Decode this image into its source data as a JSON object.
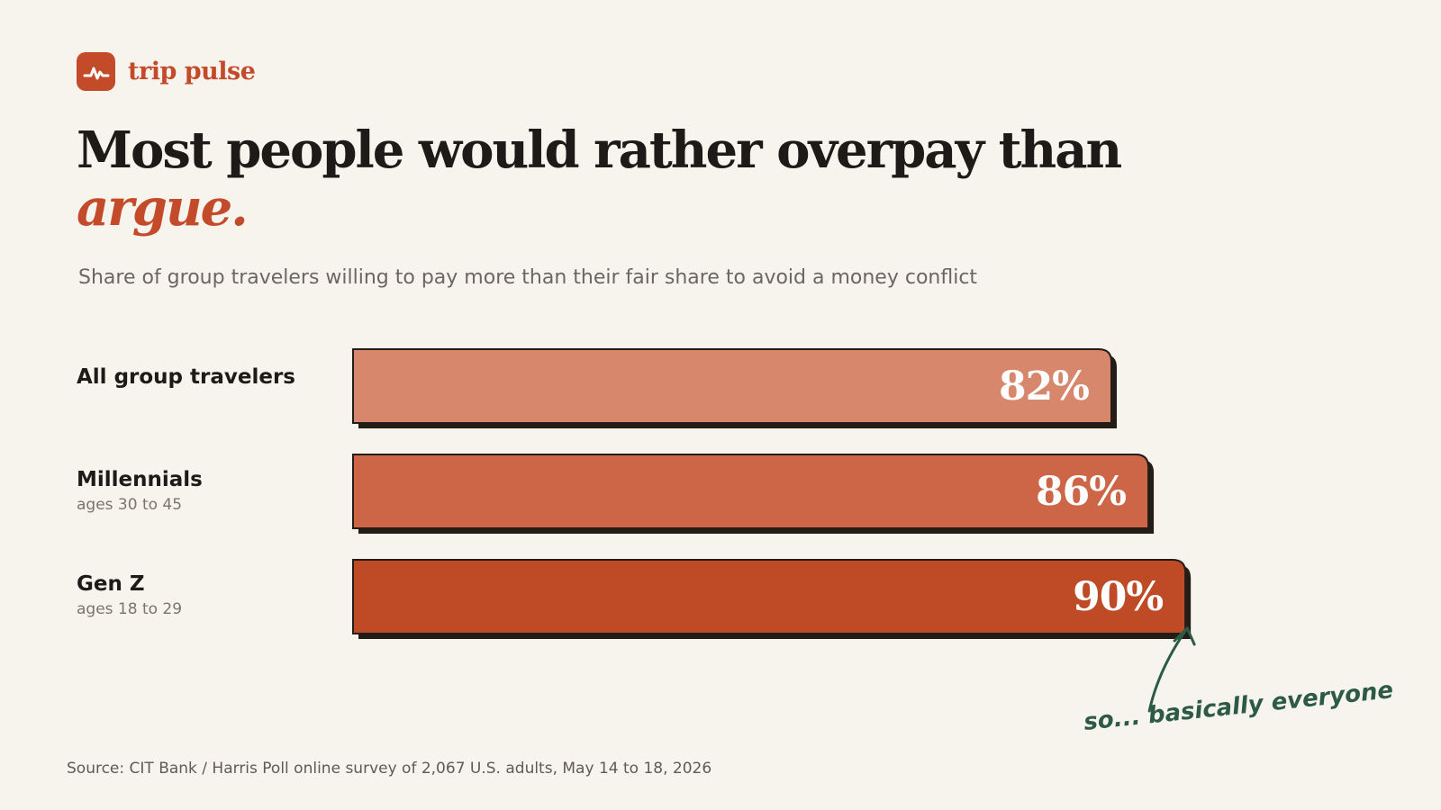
{
  "brand": {
    "name": "trip pulse",
    "icon": "pulse-icon",
    "color": "#c34b2a"
  },
  "headline": {
    "main": "Most people would rather overpay than",
    "accent": "argue."
  },
  "subtitle": "Share of group travelers willing to pay more than their fair share to avoid a money conflict",
  "chart_data": {
    "type": "bar",
    "orientation": "horizontal",
    "title": "Most people would rather overpay than argue.",
    "subtitle": "Share of group travelers willing to pay more than their fair share to avoid a money conflict",
    "categories": [
      "All group travelers",
      "Millennials",
      "Gen Z"
    ],
    "category_notes": [
      "",
      "ages 30 to 45",
      "ages 18 to 29"
    ],
    "values": [
      82,
      86,
      90
    ],
    "value_labels": [
      "82%",
      "86%",
      "90%"
    ],
    "unit": "%",
    "colors": [
      "#d6876c",
      "#cc6647",
      "#bf4a26"
    ],
    "xlabel": "",
    "ylabel": "",
    "grid": false,
    "legend": "none",
    "annotation": "so... basically everyone"
  },
  "source": "Source: CIT Bank / Harris Poll online survey of 2,067 U.S. adults, May 14 to 18, 2026"
}
